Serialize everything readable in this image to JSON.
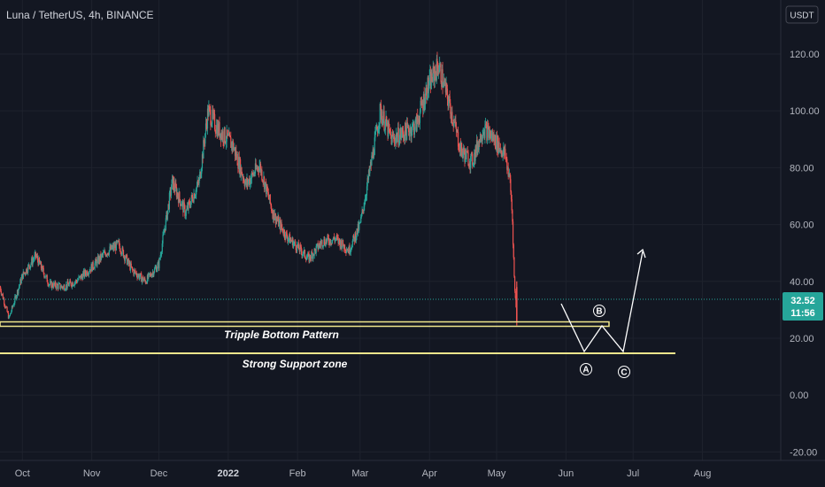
{
  "header": {
    "title": "Luna / TetherUS, 4h, BINANCE",
    "currency": "USDT"
  },
  "colors": {
    "background": "#131722",
    "grid": "#1e222d",
    "axis_text": "#b2b5be",
    "up": "#26a69a",
    "down": "#ef5350",
    "annotation": "#f0e68c",
    "price_tag": "#26a69a",
    "price_line": "#26a69a"
  },
  "price_tag": {
    "price": "32.52",
    "countdown": "11:56"
  },
  "annotations": {
    "pattern_label": "Tripple Bottom Pattern",
    "support_label": "Strong Support zone",
    "wave_a": "A",
    "wave_b": "B",
    "wave_c": "C"
  },
  "chart_data": {
    "type": "candlestick",
    "title": "Luna / TetherUS, 4h, BINANCE",
    "y_ticks": [
      "120.00",
      "100.00",
      "80.00",
      "60.00",
      "40.00",
      "20.00",
      "0.00",
      "-20.00"
    ],
    "y_tick_values": [
      120,
      100,
      80,
      60,
      40,
      20,
      0,
      -20
    ],
    "ylim": [
      -23,
      139
    ],
    "x_ticks": [
      "Oct",
      "Nov",
      "Dec",
      "2022",
      "Feb",
      "Mar",
      "Apr",
      "May",
      "Jun",
      "Jul",
      "Aug"
    ],
    "x_tick_dates": [
      "2021-10-01",
      "2021-11-01",
      "2021-12-01",
      "2022-01-01",
      "2022-02-01",
      "2022-03-01",
      "2022-04-01",
      "2022-05-01",
      "2022-06-01",
      "2022-07-01",
      "2022-08-01"
    ],
    "xlim": [
      "2021-09-21",
      "2022-09-05"
    ],
    "close_path": [
      [
        "2021-09-21",
        38
      ],
      [
        "2021-09-25",
        27
      ],
      [
        "2021-10-01",
        42
      ],
      [
        "2021-10-07",
        49
      ],
      [
        "2021-10-13",
        39
      ],
      [
        "2021-10-19",
        38
      ],
      [
        "2021-10-25",
        40
      ],
      [
        "2021-11-01",
        45
      ],
      [
        "2021-11-07",
        50
      ],
      [
        "2021-11-13",
        53
      ],
      [
        "2021-11-19",
        44
      ],
      [
        "2021-11-25",
        40
      ],
      [
        "2021-12-01",
        46
      ],
      [
        "2021-12-07",
        75
      ],
      [
        "2021-12-13",
        64
      ],
      [
        "2021-12-19",
        75
      ],
      [
        "2021-12-23",
        100
      ],
      [
        "2021-12-27",
        94
      ],
      [
        "2022-01-03",
        88
      ],
      [
        "2022-01-09",
        74
      ],
      [
        "2022-01-15",
        81
      ],
      [
        "2022-01-21",
        64
      ],
      [
        "2022-01-27",
        56
      ],
      [
        "2022-02-01",
        52
      ],
      [
        "2022-02-06",
        48
      ],
      [
        "2022-02-12",
        54
      ],
      [
        "2022-02-18",
        55
      ],
      [
        "2022-02-24",
        51
      ],
      [
        "2022-03-01",
        60
      ],
      [
        "2022-03-06",
        82
      ],
      [
        "2022-03-10",
        100
      ],
      [
        "2022-03-15",
        90
      ],
      [
        "2022-03-20",
        92
      ],
      [
        "2022-03-26",
        95
      ],
      [
        "2022-03-31",
        108
      ],
      [
        "2022-04-05",
        116
      ],
      [
        "2022-04-10",
        102
      ],
      [
        "2022-04-15",
        86
      ],
      [
        "2022-04-20",
        82
      ],
      [
        "2022-04-25",
        94
      ],
      [
        "2022-04-30",
        90
      ],
      [
        "2022-05-05",
        84
      ],
      [
        "2022-05-07",
        75
      ],
      [
        "2022-05-08",
        63
      ],
      [
        "2022-05-09",
        38
      ],
      [
        "2022-05-10",
        28
      ],
      [
        "2022-05-10",
        32.5
      ]
    ],
    "last_price": 32.52,
    "support_zones": [
      {
        "label": "Tripple Bottom Pattern",
        "from": 23.1,
        "to": 24.7
      },
      {
        "label": "Strong Support zone",
        "at": 12.7
      }
    ],
    "projection_path": [
      [
        "2022-05-10",
        38
      ],
      [
        "2022-05-22",
        13
      ],
      [
        "2022-05-28",
        24
      ],
      [
        "2022-06-03",
        13
      ],
      [
        "2022-06-10",
        48
      ]
    ],
    "wave_points": [
      {
        "label": "A",
        "date": "2022-05-22",
        "price": 8
      },
      {
        "label": "B",
        "date": "2022-05-28",
        "price": 28.5
      },
      {
        "label": "C",
        "date": "2022-06-03",
        "price": 8
      }
    ]
  }
}
